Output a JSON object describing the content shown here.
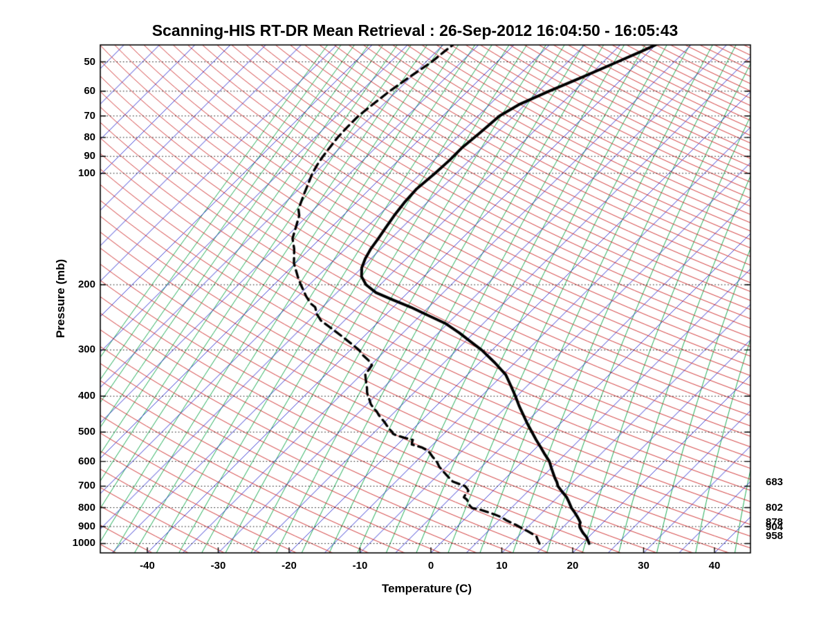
{
  "title": "Scanning-HIS RT-DR Mean Retrieval : 26-Sep-2012 16:04:50 - 16:05:43",
  "chart_data": {
    "type": "line",
    "subtype": "skew-t-log-p",
    "xlabel": "Temperature (C)",
    "ylabel": "Pressure (mb)",
    "pressure_ticks_mb": [
      50,
      60,
      70,
      80,
      90,
      100,
      200,
      300,
      400,
      500,
      600,
      700,
      800,
      900,
      1000
    ],
    "temperature_ticks_c": [
      -40,
      -30,
      -20,
      -10,
      0,
      10,
      20,
      30,
      40
    ],
    "pressure_range_mb": [
      45,
      1060
    ],
    "temperature_range_at_bottom_c": [
      -46.5,
      45
    ],
    "skew": "isotherms slope 45deg up-right",
    "gridlines": {
      "style": "dotted",
      "color": "#000000",
      "at_mb": [
        50,
        60,
        70,
        80,
        90,
        100,
        200,
        300,
        400,
        500,
        600,
        700,
        800,
        900,
        1000
      ]
    },
    "reference_lines": {
      "isotherms": {
        "color": "#2222CC",
        "min_c": -120,
        "max_c": 45,
        "step_c": 5
      },
      "dry_adiabats": {
        "color": "#CC2222",
        "min_theta_K": 220,
        "max_theta_K": 605,
        "step_K": 5
      },
      "mixing_ratio": {
        "color": "#00A040",
        "values_g_kg": [
          55,
          40,
          29,
          21,
          15.3,
          11.1,
          8.1,
          5.9,
          4.3,
          3.1,
          2.25,
          1.64,
          1.19,
          0.86,
          0.63,
          0.46,
          0.33,
          0.24,
          0.175,
          0.127,
          0.092,
          0.067,
          0.049,
          0.035,
          0.026,
          0.019,
          0.0137,
          0.0099,
          0.0072,
          0.0052
        ]
      }
    },
    "right_pressure_labels": [
      {
        "text": "683",
        "p_mb": 683
      },
      {
        "text": "802",
        "p_mb": 802
      },
      {
        "text": "878",
        "p_mb": 878
      },
      {
        "text": "904",
        "p_mb": 904
      },
      {
        "text": "958",
        "p_mb": 958
      }
    ],
    "series": [
      {
        "name": "temperature",
        "line": "solid",
        "color": "#000000",
        "points_mb_c": [
          [
            1000,
            21.0
          ],
          [
            975,
            20.2
          ],
          [
            958,
            19.6
          ],
          [
            940,
            18.8
          ],
          [
            925,
            18.2
          ],
          [
            904,
            17.4
          ],
          [
            890,
            17.0
          ],
          [
            878,
            16.8
          ],
          [
            865,
            16.3
          ],
          [
            850,
            15.7
          ],
          [
            825,
            14.6
          ],
          [
            802,
            13.5
          ],
          [
            775,
            12.4
          ],
          [
            750,
            11.3
          ],
          [
            725,
            9.9
          ],
          [
            700,
            8.5
          ],
          [
            683,
            7.8
          ],
          [
            665,
            6.9
          ],
          [
            650,
            6.2
          ],
          [
            625,
            5.0
          ],
          [
            600,
            3.8
          ],
          [
            575,
            2.2
          ],
          [
            550,
            0.6
          ],
          [
            525,
            -1.1
          ],
          [
            500,
            -2.8
          ],
          [
            475,
            -4.6
          ],
          [
            450,
            -6.4
          ],
          [
            425,
            -8.3
          ],
          [
            400,
            -10.2
          ],
          [
            375,
            -12.3
          ],
          [
            350,
            -14.6
          ],
          [
            325,
            -17.8
          ],
          [
            300,
            -21.5
          ],
          [
            285,
            -24.2
          ],
          [
            270,
            -27.0
          ],
          [
            255,
            -30.2
          ],
          [
            240,
            -34.5
          ],
          [
            230,
            -37.5
          ],
          [
            220,
            -41.0
          ],
          [
            210,
            -44.5
          ],
          [
            200,
            -47.0
          ],
          [
            190,
            -48.8
          ],
          [
            180,
            -50.0
          ],
          [
            170,
            -50.8
          ],
          [
            160,
            -51.4
          ],
          [
            150,
            -51.8
          ],
          [
            140,
            -52.3
          ],
          [
            130,
            -52.8
          ],
          [
            120,
            -53.2
          ],
          [
            110,
            -53.4
          ],
          [
            100,
            -53.0
          ],
          [
            92,
            -52.8
          ],
          [
            85,
            -52.8
          ],
          [
            78,
            -52.4
          ],
          [
            70,
            -52.0
          ],
          [
            65,
            -50.8
          ],
          [
            60,
            -48.5
          ],
          [
            55,
            -45.8
          ],
          [
            50,
            -43.0
          ],
          [
            47,
            -41.2
          ],
          [
            45,
            -40.0
          ]
        ]
      },
      {
        "name": "dewpoint",
        "line": "dashed",
        "color": "#000000",
        "points_mb_c": [
          [
            1000,
            14.0
          ],
          [
            980,
            13.3
          ],
          [
            958,
            12.6
          ],
          [
            940,
            11.5
          ],
          [
            925,
            10.5
          ],
          [
            910,
            9.4
          ],
          [
            904,
            9.0
          ],
          [
            890,
            8.0
          ],
          [
            878,
            7.0
          ],
          [
            865,
            6.0
          ],
          [
            850,
            5.0
          ],
          [
            835,
            3.6
          ],
          [
            820,
            2.0
          ],
          [
            810,
            0.8
          ],
          [
            802,
            -0.5
          ],
          [
            790,
            -1.2
          ],
          [
            775,
            -1.8
          ],
          [
            760,
            -2.5
          ],
          [
            750,
            -3.2
          ],
          [
            735,
            -3.4
          ],
          [
            720,
            -3.5
          ],
          [
            710,
            -4.0
          ],
          [
            700,
            -4.6
          ],
          [
            690,
            -5.8
          ],
          [
            680,
            -7.0
          ],
          [
            665,
            -8.0
          ],
          [
            650,
            -9.0
          ],
          [
            635,
            -10.0
          ],
          [
            620,
            -11.0
          ],
          [
            600,
            -12.1
          ],
          [
            585,
            -13.2
          ],
          [
            570,
            -14.2
          ],
          [
            560,
            -15.0
          ],
          [
            550,
            -16.2
          ],
          [
            540,
            -18.0
          ],
          [
            532,
            -18.3
          ],
          [
            525,
            -18.5
          ],
          [
            518,
            -20.0
          ],
          [
            510,
            -21.5
          ],
          [
            505,
            -22.2
          ],
          [
            500,
            -22.5
          ],
          [
            490,
            -23.4
          ],
          [
            480,
            -24.2
          ],
          [
            470,
            -25.0
          ],
          [
            460,
            -25.9
          ],
          [
            450,
            -26.8
          ],
          [
            440,
            -27.6
          ],
          [
            430,
            -28.6
          ],
          [
            420,
            -29.5
          ],
          [
            410,
            -30.2
          ],
          [
            400,
            -31.0
          ],
          [
            390,
            -31.7
          ],
          [
            380,
            -32.3
          ],
          [
            370,
            -33.0
          ],
          [
            360,
            -33.7
          ],
          [
            350,
            -34.4
          ],
          [
            340,
            -34.6
          ],
          [
            330,
            -34.8
          ],
          [
            320,
            -36.0
          ],
          [
            310,
            -37.5
          ],
          [
            300,
            -38.8
          ],
          [
            290,
            -40.5
          ],
          [
            280,
            -42.3
          ],
          [
            270,
            -44.2
          ],
          [
            260,
            -46.2
          ],
          [
            250,
            -48.3
          ],
          [
            240,
            -49.8
          ],
          [
            230,
            -51.0
          ],
          [
            225,
            -52.1
          ],
          [
            215,
            -53.8
          ],
          [
            200,
            -56.2
          ],
          [
            190,
            -57.8
          ],
          [
            175,
            -60.2
          ],
          [
            160,
            -62.2
          ],
          [
            150,
            -63.9
          ],
          [
            140,
            -65.0
          ],
          [
            130,
            -66.2
          ],
          [
            125,
            -67.2
          ],
          [
            115,
            -68.4
          ],
          [
            100,
            -70.3
          ],
          [
            95,
            -70.8
          ],
          [
            90,
            -71.2
          ],
          [
            85,
            -71.5
          ],
          [
            80,
            -71.8
          ],
          [
            75,
            -71.9
          ],
          [
            70,
            -71.9
          ],
          [
            65,
            -71.5
          ],
          [
            60,
            -71.0
          ],
          [
            55,
            -70.2
          ],
          [
            50,
            -69.2
          ],
          [
            47,
            -68.9
          ],
          [
            45,
            -68.6
          ]
        ]
      }
    ]
  }
}
